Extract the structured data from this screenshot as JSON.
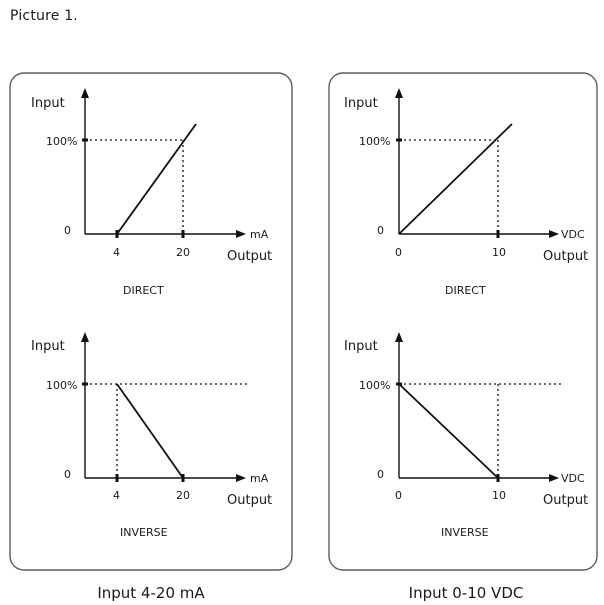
{
  "figure_label": "Picture 1.",
  "panels": [
    {
      "caption": "Input 4-20 mA",
      "direct": {
        "mode_label": "DIRECT",
        "y_label": "Input",
        "x_unit": "mA",
        "x_title": "Output",
        "y_ticks": [
          "100%",
          "0"
        ],
        "x_ticks": [
          "4",
          "20"
        ]
      },
      "inverse": {
        "mode_label": "INVERSE",
        "y_label": "Input",
        "x_unit": "mA",
        "x_title": "Output",
        "y_ticks": [
          "100%",
          "0"
        ],
        "x_ticks": [
          "4",
          "20"
        ]
      }
    },
    {
      "caption": "Input 0-10 VDC",
      "direct": {
        "mode_label": "DIRECT",
        "y_label": "Input",
        "x_unit": "VDC",
        "x_title": "Output",
        "y_ticks": [
          "100%",
          "0"
        ],
        "x_ticks": [
          "0",
          "10"
        ]
      },
      "inverse": {
        "mode_label": "INVERSE",
        "y_label": "Input",
        "x_unit": "VDC",
        "x_title": "Output",
        "y_ticks": [
          "100%",
          "0"
        ],
        "x_ticks": [
          "0",
          "10"
        ]
      }
    }
  ]
}
